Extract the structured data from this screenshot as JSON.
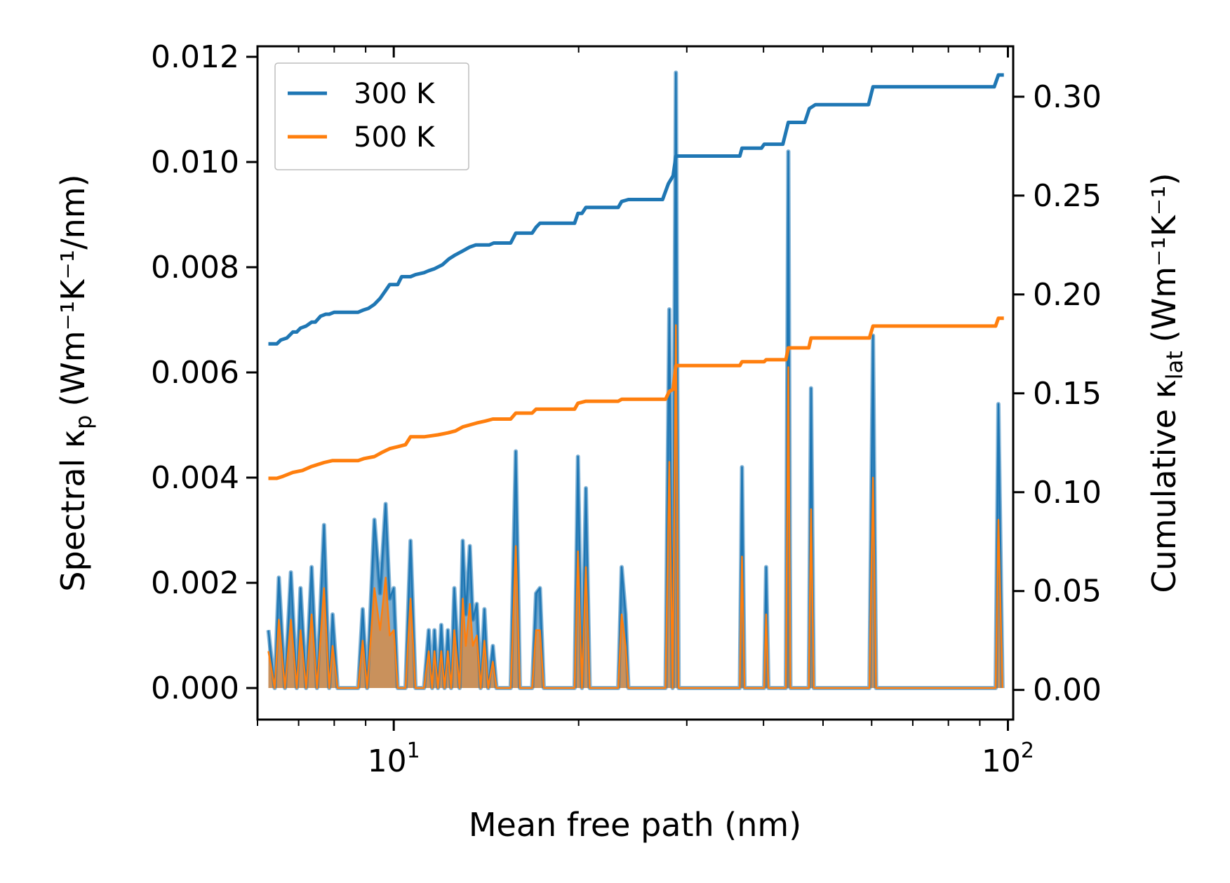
{
  "chart_data": {
    "type": "line",
    "xscale": "log",
    "xlabel": "Mean free path (nm)",
    "ylabel_left": {
      "main": "Spectral κ",
      "sub": "p",
      "unit": "(Wm⁻¹K⁻¹/nm)"
    },
    "ylabel_right": {
      "main": "Cumulative κ",
      "sub": "lat",
      "unit": "(Wm⁻¹K⁻¹)"
    },
    "xlim": [
      6.0,
      102
    ],
    "ylim_left": [
      -0.0006,
      0.0122
    ],
    "ylim_right": [
      -0.015,
      0.3255
    ],
    "x_ticks": [
      {
        "value": 10,
        "base": "10",
        "exp": "1"
      },
      {
        "value": 100,
        "base": "10",
        "exp": "2"
      }
    ],
    "y_left_ticks": [
      {
        "value": 0.0,
        "label": "0.000"
      },
      {
        "value": 0.002,
        "label": "0.002"
      },
      {
        "value": 0.004,
        "label": "0.004"
      },
      {
        "value": 0.006,
        "label": "0.006"
      },
      {
        "value": 0.008,
        "label": "0.008"
      },
      {
        "value": 0.01,
        "label": "0.010"
      },
      {
        "value": 0.012,
        "label": "0.012"
      }
    ],
    "y_right_ticks": [
      {
        "value": 0.0,
        "label": "0.00"
      },
      {
        "value": 0.05,
        "label": "0.05"
      },
      {
        "value": 0.1,
        "label": "0.10"
      },
      {
        "value": 0.15,
        "label": "0.15"
      },
      {
        "value": 0.2,
        "label": "0.20"
      },
      {
        "value": 0.25,
        "label": "0.25"
      },
      {
        "value": 0.3,
        "label": "0.30"
      }
    ],
    "legend": {
      "position": "top-left",
      "entries": [
        {
          "label": "300 K",
          "color": "#1f77b4"
        },
        {
          "label": "500 K",
          "color": "#ff7f0e"
        }
      ]
    },
    "colors": {
      "blue": "#1f77b4",
      "orange": "#ff7f0e",
      "fill": "#b8895b"
    },
    "spectral_300K": [
      [
        6.25,
        0.0011
      ],
      [
        6.4,
        0.0
      ],
      [
        6.5,
        0.0021
      ],
      [
        6.65,
        0.0
      ],
      [
        6.8,
        0.0022
      ],
      [
        6.95,
        0.0
      ],
      [
        7.05,
        0.0019
      ],
      [
        7.2,
        0.0
      ],
      [
        7.35,
        0.0023
      ],
      [
        7.5,
        0.0
      ],
      [
        7.7,
        0.0031
      ],
      [
        7.85,
        0.0
      ],
      [
        7.95,
        0.0014
      ],
      [
        8.1,
        0.0
      ],
      [
        8.75,
        0.0
      ],
      [
        8.9,
        0.0015
      ],
      [
        9.05,
        0.0
      ],
      [
        9.3,
        0.0032
      ],
      [
        9.5,
        0.0018
      ],
      [
        9.7,
        0.0035
      ],
      [
        9.85,
        0.0017
      ],
      [
        10.0,
        0.0019
      ],
      [
        10.15,
        0.0
      ],
      [
        10.45,
        0.0
      ],
      [
        10.65,
        0.0028
      ],
      [
        10.85,
        0.0
      ],
      [
        11.2,
        0.0
      ],
      [
        11.4,
        0.0011
      ],
      [
        11.55,
        0.0
      ],
      [
        11.65,
        0.0011
      ],
      [
        11.8,
        0.0
      ],
      [
        11.95,
        0.0012
      ],
      [
        12.1,
        0.0
      ],
      [
        12.25,
        0.0011
      ],
      [
        12.4,
        0.0
      ],
      [
        12.55,
        0.0019
      ],
      [
        12.8,
        0.0
      ],
      [
        12.95,
        0.0028
      ],
      [
        13.1,
        0.0014
      ],
      [
        13.3,
        0.0027
      ],
      [
        13.45,
        0.0013
      ],
      [
        13.65,
        0.0016
      ],
      [
        13.85,
        0.0
      ],
      [
        14.05,
        0.0015
      ],
      [
        14.25,
        0.0
      ],
      [
        14.5,
        0.0008
      ],
      [
        14.7,
        0.0
      ],
      [
        15.5,
        0.0
      ],
      [
        15.8,
        0.0045
      ],
      [
        16.05,
        0.0
      ],
      [
        16.8,
        0.0
      ],
      [
        17.05,
        0.0018
      ],
      [
        17.3,
        0.0019
      ],
      [
        17.55,
        0.0
      ],
      [
        19.7,
        0.0
      ],
      [
        19.95,
        0.0044
      ],
      [
        20.25,
        0.0
      ],
      [
        20.55,
        0.0038
      ],
      [
        20.85,
        0.0
      ],
      [
        23.2,
        0.0
      ],
      [
        23.5,
        0.0023
      ],
      [
        23.85,
        0.0014
      ],
      [
        24.1,
        0.0
      ],
      [
        27.7,
        0.0
      ],
      [
        28.1,
        0.0072
      ],
      [
        28.45,
        0.0
      ],
      [
        28.8,
        0.0117
      ],
      [
        29.1,
        0.0
      ],
      [
        36.6,
        0.0
      ],
      [
        36.9,
        0.0042
      ],
      [
        37.25,
        0.0
      ],
      [
        40.1,
        0.0
      ],
      [
        40.4,
        0.0023
      ],
      [
        40.75,
        0.0
      ],
      [
        43.5,
        0.0
      ],
      [
        43.9,
        0.0102
      ],
      [
        44.25,
        0.0
      ],
      [
        47.4,
        0.0
      ],
      [
        47.8,
        0.0057
      ],
      [
        48.3,
        0.0
      ],
      [
        49.0,
        0.0
      ],
      [
        59.5,
        0.0
      ],
      [
        60.3,
        0.0067
      ],
      [
        61.0,
        0.0
      ],
      [
        95.5,
        0.0
      ],
      [
        96.5,
        0.0054
      ],
      [
        98.0,
        0.0
      ]
    ],
    "spectral_500K": [
      [
        6.25,
        0.0007
      ],
      [
        6.4,
        0.0
      ],
      [
        6.5,
        0.0013
      ],
      [
        6.65,
        0.0
      ],
      [
        6.8,
        0.0013
      ],
      [
        6.95,
        0.0
      ],
      [
        7.05,
        0.0011
      ],
      [
        7.2,
        0.0
      ],
      [
        7.35,
        0.0014
      ],
      [
        7.5,
        0.0
      ],
      [
        7.7,
        0.0019
      ],
      [
        7.85,
        0.0
      ],
      [
        7.95,
        0.0008
      ],
      [
        8.1,
        0.0
      ],
      [
        8.75,
        0.0
      ],
      [
        8.9,
        0.0009
      ],
      [
        9.05,
        0.0
      ],
      [
        9.3,
        0.0019
      ],
      [
        9.5,
        0.0011
      ],
      [
        9.7,
        0.0021
      ],
      [
        9.85,
        0.001
      ],
      [
        10.0,
        0.0011
      ],
      [
        10.15,
        0.0
      ],
      [
        10.45,
        0.0
      ],
      [
        10.65,
        0.0017
      ],
      [
        10.85,
        0.0
      ],
      [
        11.2,
        0.0
      ],
      [
        11.4,
        0.0007
      ],
      [
        11.55,
        0.0
      ],
      [
        11.65,
        0.0007
      ],
      [
        11.8,
        0.0
      ],
      [
        11.95,
        0.0007
      ],
      [
        12.1,
        0.0
      ],
      [
        12.25,
        0.0007
      ],
      [
        12.4,
        0.0
      ],
      [
        12.55,
        0.0011
      ],
      [
        12.8,
        0.0
      ],
      [
        12.95,
        0.0017
      ],
      [
        13.1,
        0.0008
      ],
      [
        13.3,
        0.0016
      ],
      [
        13.45,
        0.0008
      ],
      [
        13.65,
        0.001
      ],
      [
        13.85,
        0.0
      ],
      [
        14.05,
        0.0009
      ],
      [
        14.25,
        0.0
      ],
      [
        14.5,
        0.0005
      ],
      [
        14.7,
        0.0
      ],
      [
        15.5,
        0.0
      ],
      [
        15.8,
        0.0027
      ],
      [
        16.05,
        0.0
      ],
      [
        16.8,
        0.0
      ],
      [
        17.05,
        0.0011
      ],
      [
        17.3,
        0.0011
      ],
      [
        17.55,
        0.0
      ],
      [
        19.7,
        0.0
      ],
      [
        19.95,
        0.0026
      ],
      [
        20.25,
        0.0
      ],
      [
        20.55,
        0.0023
      ],
      [
        20.85,
        0.0
      ],
      [
        23.2,
        0.0
      ],
      [
        23.5,
        0.0014
      ],
      [
        23.85,
        0.0008
      ],
      [
        24.1,
        0.0
      ],
      [
        27.7,
        0.0
      ],
      [
        28.1,
        0.0043
      ],
      [
        28.45,
        0.0
      ],
      [
        28.8,
        0.0069
      ],
      [
        29.1,
        0.0
      ],
      [
        36.6,
        0.0
      ],
      [
        36.9,
        0.0025
      ],
      [
        37.25,
        0.0
      ],
      [
        40.1,
        0.0
      ],
      [
        40.4,
        0.0014
      ],
      [
        40.75,
        0.0
      ],
      [
        43.5,
        0.0
      ],
      [
        43.9,
        0.0061
      ],
      [
        44.25,
        0.0
      ],
      [
        47.4,
        0.0
      ],
      [
        47.8,
        0.0034
      ],
      [
        48.3,
        0.0
      ],
      [
        49.0,
        0.0
      ],
      [
        59.5,
        0.0
      ],
      [
        60.3,
        0.004
      ],
      [
        61.0,
        0.0
      ],
      [
        95.5,
        0.0
      ],
      [
        96.5,
        0.0032
      ],
      [
        98.0,
        0.0
      ]
    ],
    "cumulative_300K": [
      [
        6.25,
        0.175
      ],
      [
        6.45,
        0.175
      ],
      [
        6.55,
        0.177
      ],
      [
        6.7,
        0.178
      ],
      [
        6.85,
        0.181
      ],
      [
        6.95,
        0.181
      ],
      [
        7.05,
        0.183
      ],
      [
        7.2,
        0.184
      ],
      [
        7.35,
        0.186
      ],
      [
        7.45,
        0.186
      ],
      [
        7.6,
        0.189
      ],
      [
        7.75,
        0.19
      ],
      [
        7.85,
        0.19
      ],
      [
        8.0,
        0.191
      ],
      [
        8.75,
        0.191
      ],
      [
        8.9,
        0.192
      ],
      [
        9.1,
        0.193
      ],
      [
        9.3,
        0.195
      ],
      [
        9.5,
        0.198
      ],
      [
        9.7,
        0.202
      ],
      [
        9.85,
        0.205
      ],
      [
        10.15,
        0.205
      ],
      [
        10.3,
        0.209
      ],
      [
        10.65,
        0.209
      ],
      [
        10.85,
        0.21
      ],
      [
        11.2,
        0.211
      ],
      [
        11.4,
        0.212
      ],
      [
        11.65,
        0.213
      ],
      [
        12.0,
        0.215
      ],
      [
        12.3,
        0.218
      ],
      [
        12.6,
        0.22
      ],
      [
        12.95,
        0.222
      ],
      [
        13.3,
        0.224
      ],
      [
        13.6,
        0.225
      ],
      [
        14.3,
        0.225
      ],
      [
        14.55,
        0.226
      ],
      [
        15.5,
        0.226
      ],
      [
        15.8,
        0.231
      ],
      [
        16.8,
        0.231
      ],
      [
        17.05,
        0.234
      ],
      [
        17.3,
        0.236
      ],
      [
        19.7,
        0.236
      ],
      [
        19.95,
        0.241
      ],
      [
        20.25,
        0.241
      ],
      [
        20.55,
        0.244
      ],
      [
        23.2,
        0.244
      ],
      [
        23.5,
        0.247
      ],
      [
        24.1,
        0.248
      ],
      [
        27.4,
        0.248
      ],
      [
        28.0,
        0.256
      ],
      [
        28.5,
        0.26
      ],
      [
        28.8,
        0.27
      ],
      [
        36.6,
        0.27
      ],
      [
        36.9,
        0.274
      ],
      [
        39.7,
        0.274
      ],
      [
        40.1,
        0.276
      ],
      [
        43.0,
        0.276
      ],
      [
        43.9,
        0.287
      ],
      [
        46.7,
        0.287
      ],
      [
        47.5,
        0.294
      ],
      [
        48.6,
        0.296
      ],
      [
        59.3,
        0.296
      ],
      [
        60.3,
        0.305
      ],
      [
        95.0,
        0.305
      ],
      [
        96.5,
        0.311
      ],
      [
        98.5,
        0.311
      ]
    ],
    "cumulative_500K": [
      [
        6.25,
        0.107
      ],
      [
        6.45,
        0.107
      ],
      [
        6.6,
        0.108
      ],
      [
        6.85,
        0.11
      ],
      [
        7.1,
        0.111
      ],
      [
        7.35,
        0.113
      ],
      [
        7.7,
        0.115
      ],
      [
        7.95,
        0.116
      ],
      [
        8.75,
        0.116
      ],
      [
        8.95,
        0.117
      ],
      [
        9.3,
        0.118
      ],
      [
        9.55,
        0.12
      ],
      [
        9.85,
        0.122
      ],
      [
        10.15,
        0.123
      ],
      [
        10.45,
        0.124
      ],
      [
        10.65,
        0.128
      ],
      [
        11.2,
        0.128
      ],
      [
        11.8,
        0.129
      ],
      [
        12.25,
        0.13
      ],
      [
        12.6,
        0.131
      ],
      [
        12.95,
        0.133
      ],
      [
        13.3,
        0.134
      ],
      [
        13.65,
        0.135
      ],
      [
        14.1,
        0.136
      ],
      [
        14.5,
        0.137
      ],
      [
        15.5,
        0.137
      ],
      [
        15.8,
        0.14
      ],
      [
        16.8,
        0.14
      ],
      [
        17.05,
        0.142
      ],
      [
        19.7,
        0.142
      ],
      [
        19.95,
        0.145
      ],
      [
        20.55,
        0.146
      ],
      [
        23.2,
        0.146
      ],
      [
        23.5,
        0.147
      ],
      [
        27.7,
        0.147
      ],
      [
        28.1,
        0.151
      ],
      [
        28.5,
        0.152
      ],
      [
        28.8,
        0.164
      ],
      [
        36.6,
        0.164
      ],
      [
        36.9,
        0.166
      ],
      [
        40.1,
        0.166
      ],
      [
        40.4,
        0.167
      ],
      [
        43.5,
        0.167
      ],
      [
        43.9,
        0.173
      ],
      [
        47.4,
        0.173
      ],
      [
        47.8,
        0.178
      ],
      [
        59.5,
        0.178
      ],
      [
        60.3,
        0.184
      ],
      [
        95.5,
        0.184
      ],
      [
        96.5,
        0.188
      ],
      [
        98.5,
        0.188
      ]
    ]
  }
}
